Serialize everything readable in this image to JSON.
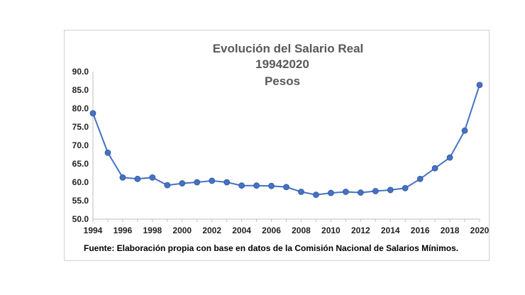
{
  "chart_data": {
    "type": "line",
    "title": "Evolución del Salario Real",
    "subtitle": "19942020",
    "unit_label": "Pesos",
    "source_note": "Fuente: Elaboración propia con base en datos de la Comisión Nacional de Salarios Mínimos.",
    "x": [
      1994,
      1995,
      1996,
      1997,
      1998,
      1999,
      2000,
      2001,
      2002,
      2003,
      2004,
      2005,
      2006,
      2007,
      2008,
      2009,
      2010,
      2011,
      2012,
      2013,
      2014,
      2015,
      2016,
      2017,
      2018,
      2019,
      2020
    ],
    "series": [
      {
        "values": [
          78.7,
          68.0,
          61.3,
          60.9,
          61.3,
          59.2,
          59.7,
          60.0,
          60.4,
          60.0,
          59.1,
          59.1,
          59.0,
          58.7,
          57.4,
          56.6,
          57.1,
          57.4,
          57.2,
          57.6,
          57.9,
          58.4,
          60.9,
          63.8,
          66.7,
          74.0,
          86.4
        ],
        "color": "#4472c4"
      }
    ],
    "ylim": [
      50,
      90
    ],
    "yticks": [
      "50.0",
      "55.0",
      "60.0",
      "65.0",
      "70.0",
      "75.0",
      "80.0",
      "85.0",
      "90.0"
    ],
    "xticks": [
      "1994",
      "1996",
      "1998",
      "2000",
      "2002",
      "2004",
      "2006",
      "2008",
      "2010",
      "2012",
      "2014",
      "2016",
      "2018",
      "2020"
    ],
    "grid": false,
    "legend": "none"
  }
}
